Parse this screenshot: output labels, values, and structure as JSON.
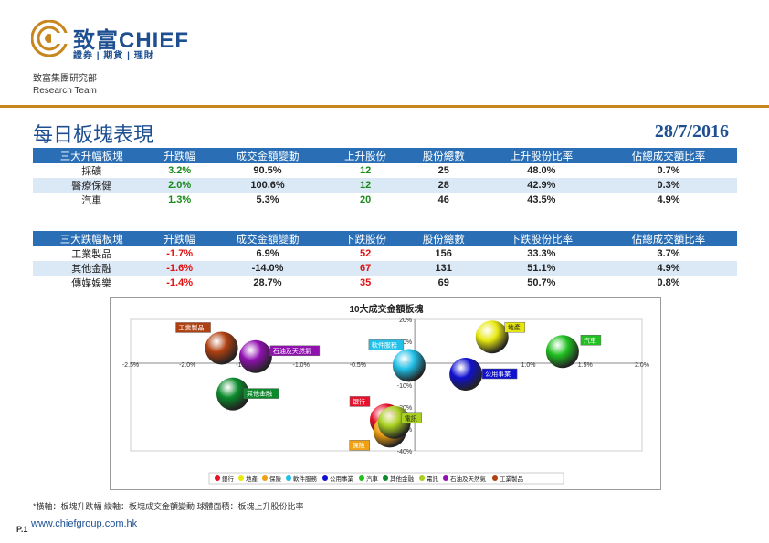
{
  "header": {
    "brand_cn": "致富",
    "brand_en": "CHIEF",
    "tagline": "證券 | 期貨 | 理財",
    "dept_cn": "致富集團研究部",
    "dept_en": "Research Team"
  },
  "title": "每日板塊表現",
  "date": "28/7/2016",
  "top_table": {
    "headers": [
      "三大升幅板塊",
      "升跌幅",
      "成交金額變動",
      "上升股份",
      "股份總數",
      "上升股份比率",
      "佔總成交額比率"
    ],
    "rows": [
      [
        "採礦",
        "3.2%",
        "90.5%",
        "12",
        "25",
        "48.0%",
        "0.7%"
      ],
      [
        "醫療保健",
        "2.0%",
        "100.6%",
        "12",
        "28",
        "42.9%",
        "0.3%"
      ],
      [
        "汽車",
        "1.3%",
        "5.3%",
        "20",
        "46",
        "43.5%",
        "4.9%"
      ]
    ]
  },
  "bottom_table": {
    "headers": [
      "三大跌幅板塊",
      "升跌幅",
      "成交金額變動",
      "下跌股份",
      "股份總數",
      "下跌股份比率",
      "佔總成交額比率"
    ],
    "rows": [
      [
        "工業製品",
        "-1.7%",
        "6.9%",
        "52",
        "156",
        "33.3%",
        "3.7%"
      ],
      [
        "其他金融",
        "-1.6%",
        "-14.0%",
        "67",
        "131",
        "51.1%",
        "4.9%"
      ],
      [
        "傳媒娛樂",
        "-1.4%",
        "28.7%",
        "35",
        "69",
        "50.7%",
        "0.8%"
      ]
    ]
  },
  "colors": {
    "up": "#1a8a1a",
    "down": "#e01010",
    "header_bg": "#2a6eb5",
    "brand": "#1d4f91",
    "rule": "#c8861f"
  },
  "chart_data": {
    "type": "scatter",
    "title": "10大成交金額板塊",
    "x_ticks": [
      "-2.5%",
      "-2.0%",
      "-1.5%",
      "-1.0%",
      "-0.5%",
      "0.0%",
      "0.5%",
      "1.0%",
      "1.5%",
      "2.0%"
    ],
    "y_ticks": [
      "20%",
      "10%",
      "0%",
      "-10%",
      "-20%",
      "-30%",
      "-40%"
    ],
    "xlim": [
      -2.5,
      2.0
    ],
    "ylim": [
      -40,
      20
    ],
    "series": [
      {
        "name": "銀行",
        "x": -0.25,
        "y": -26,
        "color": "#e8102a",
        "label_color": "#e8102a"
      },
      {
        "name": "地產",
        "x": 0.68,
        "y": 12,
        "color": "#e8e810",
        "label_color": "#e8e810"
      },
      {
        "name": "保險",
        "x": -0.22,
        "y": -31,
        "color": "#f0a010",
        "label_color": "#f0a010"
      },
      {
        "name": "軟件服務",
        "x": -0.05,
        "y": -1,
        "color": "#20c0e8",
        "label_color": "#20c0e8"
      },
      {
        "name": "公用事業",
        "x": 0.45,
        "y": -5,
        "color": "#1010d0",
        "label_color": "#1010d0"
      },
      {
        "name": "汽車",
        "x": 1.3,
        "y": 5.3,
        "color": "#20c020",
        "label_color": "#20c020"
      },
      {
        "name": "其他金融",
        "x": -1.6,
        "y": -14,
        "color": "#0a8a2a",
        "label_color": "#0a8a2a"
      },
      {
        "name": "電訊",
        "x": -0.18,
        "y": -27,
        "color": "#a8d020",
        "label_color": "#a8d020"
      },
      {
        "name": "石油及天然氣",
        "x": -1.4,
        "y": 3,
        "color": "#9010b0",
        "label_color": "#9010b0"
      },
      {
        "name": "工業製品",
        "x": -1.7,
        "y": 6.9,
        "color": "#b04010",
        "label_color": "#b04010"
      }
    ]
  },
  "footnote": "*橫軸：板塊升跌幅      縱軸：板塊成交金額變動      球體面積：板塊上升股份比率",
  "page_num": "P.1",
  "url": "www.chiefgroup.com.hk"
}
